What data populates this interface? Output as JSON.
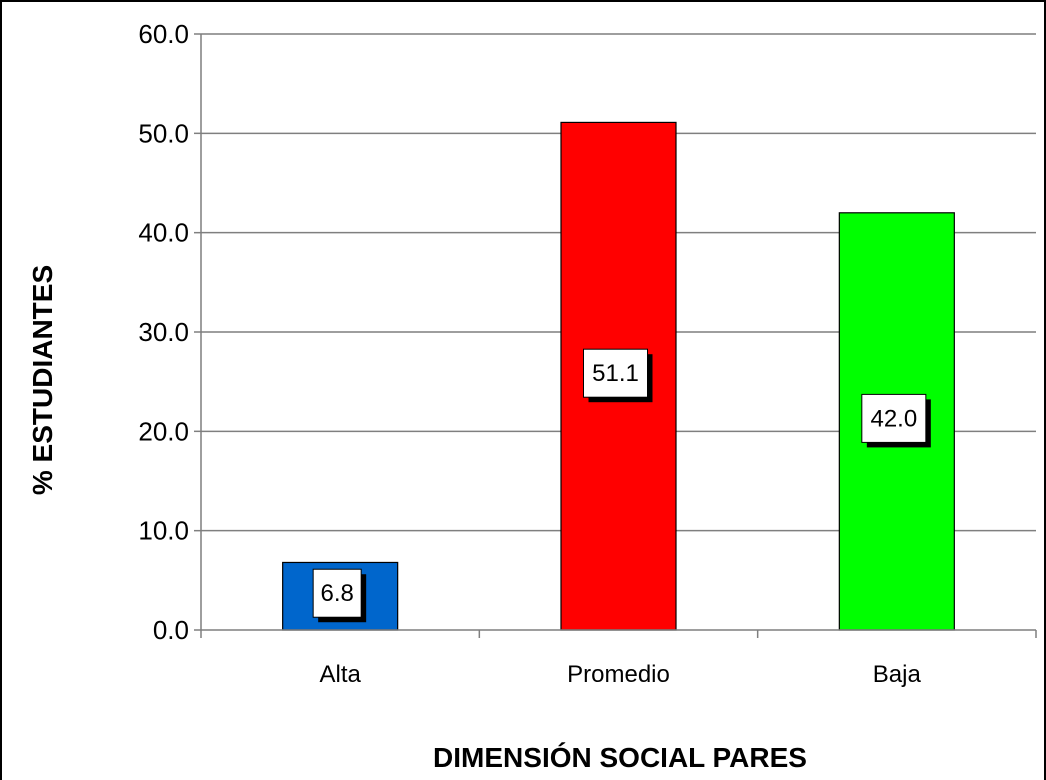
{
  "chart_data": {
    "type": "bar",
    "categories": [
      "Alta",
      "Promedio",
      "Baja"
    ],
    "values": [
      6.8,
      51.1,
      42.0
    ],
    "data_labels": [
      "6.8",
      "51.1",
      "42.0"
    ],
    "bar_colors": [
      "#0066CC",
      "#FF0000",
      "#00FF00"
    ],
    "title": "",
    "xlabel": "DIMENSIÓN SOCIAL PARES",
    "ylabel": "% ESTUDIANTES",
    "ylim": [
      0,
      60
    ],
    "yticks": [
      "0.0",
      "10.0",
      "20.0",
      "30.0",
      "40.0",
      "50.0",
      "60.0"
    ],
    "grid": true,
    "legend": "none"
  }
}
